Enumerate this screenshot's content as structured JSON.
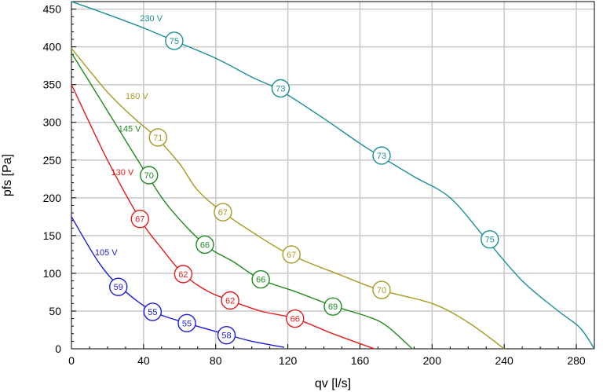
{
  "chart_data": {
    "type": "line",
    "xlabel": "qv [l/s]",
    "ylabel": "pfs [Pa]",
    "xlim": [
      0,
      290
    ],
    "ylim": [
      0,
      460
    ],
    "xticks": [
      0,
      40,
      80,
      120,
      160,
      200,
      240,
      280
    ],
    "yticks": [
      0,
      50,
      100,
      150,
      200,
      250,
      300,
      350,
      400,
      450
    ],
    "grid": true,
    "series": [
      {
        "name": "230 V",
        "color": "#1a8f95",
        "x": [
          0,
          20,
          40,
          57,
          80,
          100,
          116,
          140,
          160,
          172,
          190,
          210,
          230,
          250,
          270,
          282,
          290
        ],
        "y": [
          460,
          443,
          425,
          408,
          385,
          360,
          342,
          305,
          272,
          254,
          228,
          200,
          145,
          90,
          50,
          28,
          0
        ],
        "label_at": [
          38,
          434
        ],
        "markers": [
          {
            "x": 57,
            "y": 408,
            "label": "75"
          },
          {
            "x": 116,
            "y": 345,
            "label": "73"
          },
          {
            "x": 172,
            "y": 256,
            "label": "73"
          },
          {
            "x": 232,
            "y": 145,
            "label": "75"
          }
        ]
      },
      {
        "name": "160 V",
        "color": "#a69a22",
        "x": [
          0,
          20,
          35,
          47,
          60,
          70,
          84,
          100,
          121,
          150,
          171,
          200,
          220,
          240
        ],
        "y": [
          398,
          340,
          305,
          280,
          245,
          210,
          181,
          155,
          125,
          97,
          78,
          60,
          35,
          0
        ],
        "label_at": [
          30,
          331
        ],
        "markers": [
          {
            "x": 48,
            "y": 280,
            "label": "71"
          },
          {
            "x": 84,
            "y": 181,
            "label": "67"
          },
          {
            "x": 122,
            "y": 125,
            "label": "67"
          },
          {
            "x": 172,
            "y": 78,
            "label": "70"
          }
        ]
      },
      {
        "name": "145 V",
        "color": "#1f8a1f",
        "x": [
          0,
          20,
          42,
          55,
          74,
          90,
          105,
          125,
          145,
          165,
          175,
          189
        ],
        "y": [
          392,
          315,
          230,
          185,
          138,
          115,
          92,
          75,
          57,
          42,
          30,
          0
        ],
        "label_at": [
          26,
          288
        ],
        "markers": [
          {
            "x": 43,
            "y": 230,
            "label": "70"
          },
          {
            "x": 74,
            "y": 138,
            "label": "66"
          },
          {
            "x": 105,
            "y": 92,
            "label": "66"
          },
          {
            "x": 145,
            "y": 56,
            "label": "69"
          }
        ]
      },
      {
        "name": "130 V",
        "color": "#e31b1b",
        "x": [
          0,
          20,
          38,
          50,
          62,
          75,
          88,
          105,
          124,
          145,
          168
        ],
        "y": [
          350,
          250,
          172,
          133,
          99,
          77,
          64,
          50,
          40,
          20,
          0
        ],
        "label_at": [
          22,
          230
        ],
        "markers": [
          {
            "x": 38,
            "y": 172,
            "label": "67"
          },
          {
            "x": 62,
            "y": 99,
            "label": "62"
          },
          {
            "x": 88,
            "y": 64,
            "label": "62"
          },
          {
            "x": 124,
            "y": 40,
            "label": "66"
          }
        ]
      },
      {
        "name": "105 V",
        "color": "#1c1cd6",
        "x": [
          0,
          15,
          27,
          45,
          64,
          86,
          100,
          118
        ],
        "y": [
          175,
          115,
          82,
          50,
          34,
          19,
          10,
          2
        ],
        "label_at": [
          13,
          124
        ],
        "markers": [
          {
            "x": 26,
            "y": 82,
            "label": "59"
          },
          {
            "x": 45,
            "y": 49,
            "label": "55"
          },
          {
            "x": 64,
            "y": 34,
            "label": "55"
          },
          {
            "x": 86,
            "y": 18,
            "label": "58"
          }
        ]
      }
    ]
  }
}
